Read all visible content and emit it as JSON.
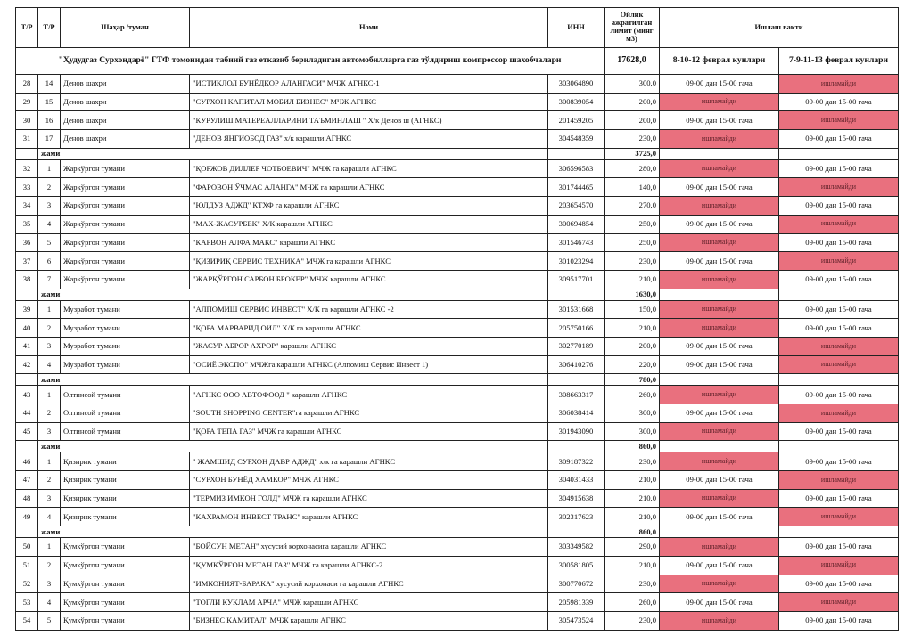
{
  "headers": {
    "tr1": "Т/Р",
    "tr2": "Т/Р",
    "city": "Шаҳар /туман",
    "name": "Номи",
    "inn": "ИНН",
    "limit": "Ойлик ажратилган лимит (минг м3)",
    "work": "Ишлаш вакти"
  },
  "banner": {
    "title": "\"Ҳудудгаз Сурхондарё\" ГТФ томонидан табиий газ етказиб бериладиган автомобилларга газ тўлдириш компрессор шахобчалари",
    "total": "17628,0",
    "period1": "8-10-12 феврал кунлари",
    "period2": "7-9-11-13 феврал кунлари"
  },
  "labels": {
    "subtotal": "жами",
    "works": "09-00 дан 15-00 гача",
    "closed": "ишламайди"
  },
  "colors": {
    "closed_bg": "#e9707e"
  },
  "rows": [
    {
      "type": "item",
      "n": "28",
      "k": "14",
      "city": "Денов шахри",
      "name": "\"ИСТИКЛОЛ БУНЁДКОР АЛАНГАСИ\" МЧЖ    АГНКС-1",
      "inn": "303064890",
      "limit": "300,0",
      "p1": "work",
      "p2": "closed"
    },
    {
      "type": "item",
      "n": "29",
      "k": "15",
      "city": "Денов шахри",
      "name": "\"СУРХОН КАПИТАЛ МОБИЛ БИЗНЕС\" МЧЖ  АГНКС",
      "inn": "300839054",
      "limit": "200,0",
      "p1": "closed",
      "p2": "work"
    },
    {
      "type": "item",
      "n": "30",
      "k": "16",
      "city": "Денов шахри",
      "name": "\"КУРУЛИШ МАТЕРЕАЛЛАРИНИ ТАЪМИНЛАШ \" Х/к  Денов ш (АГНКС)",
      "inn": "201459205",
      "limit": "200,0",
      "p1": "work",
      "p2": "closed"
    },
    {
      "type": "item",
      "n": "31",
      "k": "17",
      "city": "Денов шахри",
      "name": "\"ДЕНОВ ЯНГИОБОД ГАЗ\" х/к карашли АГНКС",
      "inn": "304548359",
      "limit": "230,0",
      "p1": "closed",
      "p2": "work"
    },
    {
      "type": "sub",
      "value": "3725,0"
    },
    {
      "type": "item",
      "n": "32",
      "k": "1",
      "city": "Жаркўргон тумани",
      "name": "\"ҚОРЖОВ ДИЛЛЕР ЧОТБОЕВИЧ\" МЧЖ га карашли АГНКС",
      "inn": "306596583",
      "limit": "280,0",
      "p1": "closed",
      "p2": "work"
    },
    {
      "type": "item",
      "n": "33",
      "k": "2",
      "city": "Жаркўргон тумани",
      "name": "\"ФАРОВОН ЎЧМАС АЛАНГА\" МЧЖ га карашли АГНКС",
      "inn": "301744465",
      "limit": "140,0",
      "p1": "work",
      "p2": "closed"
    },
    {
      "type": "item",
      "n": "34",
      "k": "3",
      "city": "Жаркўргон тумани",
      "name": "\"ЮЛДУЗ АДЖД\" КТХФ га карашли АГНКС",
      "inn": "203654570",
      "limit": "270,0",
      "p1": "closed",
      "p2": "work"
    },
    {
      "type": "item",
      "n": "35",
      "k": "4",
      "city": "Жаркўргон тумани",
      "name": "\"МАХ-ЖАСУРБЕК\" Х/К карашли АГНКС",
      "inn": "300694854",
      "limit": "250,0",
      "p1": "work",
      "p2": "closed"
    },
    {
      "type": "item",
      "n": "36",
      "k": "5",
      "city": "Жаркўргон тумани",
      "name": "\"КАРВОН АЛФА МАКС\" карашли АГНКС",
      "inn": "301546743",
      "limit": "250,0",
      "p1": "closed",
      "p2": "work"
    },
    {
      "type": "item",
      "n": "37",
      "k": "6",
      "city": "Жаркўргон тумани",
      "name": "\"ҚИЗИРИҚ СЕРВИС ТЕХНИКА\"  МЧЖ га карашли АГНКС",
      "inn": "301023294",
      "limit": "230,0",
      "p1": "work",
      "p2": "closed"
    },
    {
      "type": "item",
      "n": "38",
      "k": "7",
      "city": "Жаркўргон тумани",
      "name": "\"ЖАРҚЎРГОН САРБОН БРОКЕР\" МЧЖ  карашли АГНКС",
      "inn": "309517701",
      "limit": "210,0",
      "p1": "closed",
      "p2": "work"
    },
    {
      "type": "sub",
      "value": "1630,0"
    },
    {
      "type": "item",
      "n": "39",
      "k": "1",
      "city": "Музработ тумани",
      "name": "\"АЛПОМИШ СЕРВИС ИНВЕСТ\" Х/К га карашли АГНКС -2",
      "inn": "301531668",
      "limit": "150,0",
      "p1": "closed",
      "p2": "work"
    },
    {
      "type": "item",
      "n": "40",
      "k": "2",
      "city": "Музработ тумани",
      "name": "\"ҚОРА МАРВАРИД ОИЛ\" Х/К га карашли АГНКС",
      "inn": "205750166",
      "limit": "210,0",
      "p1": "closed",
      "p2": "work"
    },
    {
      "type": "item",
      "n": "41",
      "k": "3",
      "city": "Музработ тумани",
      "name": "\"ЖАСУР АБРОР АХРОР\" карашли АГНКС",
      "inn": "302770189",
      "limit": "200,0",
      "p1": "work",
      "p2": "closed"
    },
    {
      "type": "item",
      "n": "42",
      "k": "4",
      "city": "Музработ тумани",
      "name": "\"ОСИЁ ЭКСПО\" МЧЖга карашли АГНКС (Алпомиш Сервис Инвест 1)",
      "inn": "306410276",
      "limit": "220,0",
      "p1": "work",
      "p2": "closed"
    },
    {
      "type": "sub",
      "value": "780,0"
    },
    {
      "type": "item",
      "n": "43",
      "k": "1",
      "city": "Олтинсой тумани",
      "name": "\"АГНКС ООО АВТОФООД \" карашли АГНКС",
      "inn": "308663317",
      "limit": "260,0",
      "p1": "closed",
      "p2": "work"
    },
    {
      "type": "item",
      "n": "44",
      "k": "2",
      "city": "Олтинсой тумани",
      "name": "\"SOUTH SHOPPING CENTER\"га карашли АГНКС",
      "inn": "306038414",
      "limit": "300,0",
      "p1": "work",
      "p2": "closed"
    },
    {
      "type": "item",
      "n": "45",
      "k": "3",
      "city": "Олтинсой тумани",
      "name": "\"ҚОРА ТЕПА ГАЗ\" МЧЖ га карашли АГНКС",
      "inn": "301943090",
      "limit": "300,0",
      "p1": "closed",
      "p2": "work"
    },
    {
      "type": "sub",
      "value": "860,0"
    },
    {
      "type": "item",
      "n": "46",
      "k": "1",
      "city": "Қизирик тумани",
      "name": "\" ЖАМШИД СУРХОН ДАВР АДЖД\" х/к га карашли АГНКС",
      "inn": "309187322",
      "limit": "230,0",
      "p1": "closed",
      "p2": "work"
    },
    {
      "type": "item",
      "n": "47",
      "k": "2",
      "city": "Қизирик тумани",
      "name": "\"СУРХОН БУНЁД ХАМКОР\" МЧЖ АГНКС",
      "inn": "304031433",
      "limit": "210,0",
      "p1": "work",
      "p2": "closed"
    },
    {
      "type": "item",
      "n": "48",
      "k": "3",
      "city": "Қизирик тумани",
      "name": "\"ТЕРМИЗ ИМКОН ГОЛД\" МЧЖ га карашли АГНКС",
      "inn": "304915638",
      "limit": "210,0",
      "p1": "closed",
      "p2": "work"
    },
    {
      "type": "item",
      "n": "49",
      "k": "4",
      "city": "Қизирик тумани",
      "name": "\"КАХРАМОН ИНВЕСТ ТРАНС\" карашли АГНКС",
      "inn": "302317623",
      "limit": "210,0",
      "p1": "work",
      "p2": "closed"
    },
    {
      "type": "sub",
      "value": "860,0"
    },
    {
      "type": "item",
      "n": "50",
      "k": "1",
      "city": "Қумкўргон тумани",
      "name": "\"БОЙСУН МЕТАН\" хусусий корхонасига карашли  АГНКС",
      "inn": "303349582",
      "limit": "290,0",
      "p1": "closed",
      "p2": "work"
    },
    {
      "type": "item",
      "n": "51",
      "k": "2",
      "city": "Қумкўргон тумани",
      "name": "\"ҚУМҚЎРҒОН МЕТАН ГАЗ\" МЧЖ га карашли АГНКС-2",
      "inn": "300581805",
      "limit": "210,0",
      "p1": "work",
      "p2": "closed"
    },
    {
      "type": "item",
      "n": "52",
      "k": "3",
      "city": "Қумкўргон тумани",
      "name": "\"ИМКОНИЯТ-БАРАКА\" хусусий корхонаси га карашли АГНКС",
      "inn": "300770672",
      "limit": "230,0",
      "p1": "closed",
      "p2": "work"
    },
    {
      "type": "item",
      "n": "53",
      "k": "4",
      "city": "Қумкўргон тумани",
      "name": "\"ТОГЛИ КУКЛАМ АРЧА\" МЧЖ  карашли АГНКС",
      "inn": "205981339",
      "limit": "260,0",
      "p1": "work",
      "p2": "closed"
    },
    {
      "type": "item",
      "n": "54",
      "k": "5",
      "city": "Қумкўргон тумани",
      "name": "\"БИЗНЕС КАМИТАЛ\" МЧЖ карашли АГНКС",
      "inn": "305473524",
      "limit": "230,0",
      "p1": "closed",
      "p2": "work"
    }
  ]
}
